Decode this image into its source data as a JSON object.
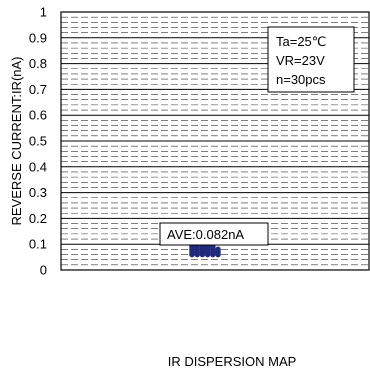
{
  "chart_data": {
    "type": "scatter",
    "ylabel": "REVERSE CURRENT:IR(nA)",
    "xlabel": "IR DISPERSION MAP",
    "ylim": [
      0,
      1
    ],
    "yticks": [
      0,
      0.1,
      0.2,
      0.3,
      0.4,
      0.5,
      0.6,
      0.7,
      0.8,
      0.9,
      1
    ],
    "ytick_labels": [
      "0",
      "0.1",
      "0.2",
      "0.3",
      "0.4",
      "0.5",
      "0.6",
      "0.7",
      "0.8",
      "0.9",
      "1"
    ],
    "grid": {
      "horizontal_major": true,
      "horizontal_minor_dashed": true,
      "vertical": false
    },
    "conditions": [
      "Ta=25℃",
      "VR=23V",
      "n=30pcs"
    ],
    "conditions_position": "top-right",
    "annotation": "AVE:0.082nA",
    "point_color": "#1f2a7a",
    "points_y": [
      0.06,
      0.06,
      0.06,
      0.06,
      0.06,
      0.06,
      0.07,
      0.07,
      0.07,
      0.07,
      0.07,
      0.07,
      0.08,
      0.08,
      0.08,
      0.08,
      0.08,
      0.08,
      0.09,
      0.09,
      0.09,
      0.09,
      0.09,
      0.1,
      0.1,
      0.1,
      0.11,
      0.11,
      0.12,
      0.12
    ]
  }
}
